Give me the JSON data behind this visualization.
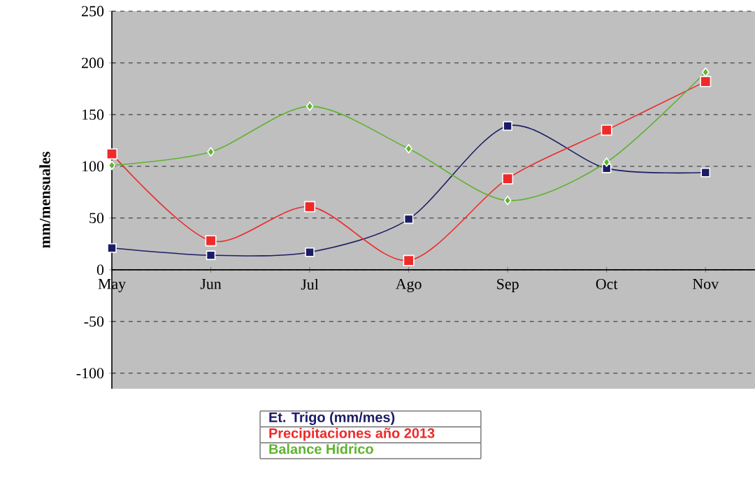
{
  "chart_data": {
    "type": "line",
    "ylabel": "mm/mensuales",
    "categories": [
      "May",
      "Jun",
      "Jul",
      "Ago",
      "Sep",
      "Oct",
      "Nov"
    ],
    "ylim": [
      -115,
      250
    ],
    "yticks": [
      -100,
      -50,
      0,
      50,
      100,
      150,
      200,
      250
    ],
    "grid": "y",
    "legend": "bottom",
    "line_style": "solid",
    "series": [
      {
        "name": "Et. Trigo (mm/mes)",
        "color": "#1c1c66",
        "marker": "square",
        "values": [
          21,
          14,
          17,
          49,
          139,
          98,
          94
        ]
      },
      {
        "name": "Precipitaciones año 2013",
        "color": "#ee2a2a",
        "marker": "square",
        "values": [
          112,
          28,
          61,
          9,
          88,
          135,
          182
        ]
      },
      {
        "name": "Balance Hídrico",
        "color": "#5fb32e",
        "marker": "diamond",
        "values": [
          101,
          114,
          158,
          117,
          67,
          104,
          191
        ]
      }
    ]
  }
}
